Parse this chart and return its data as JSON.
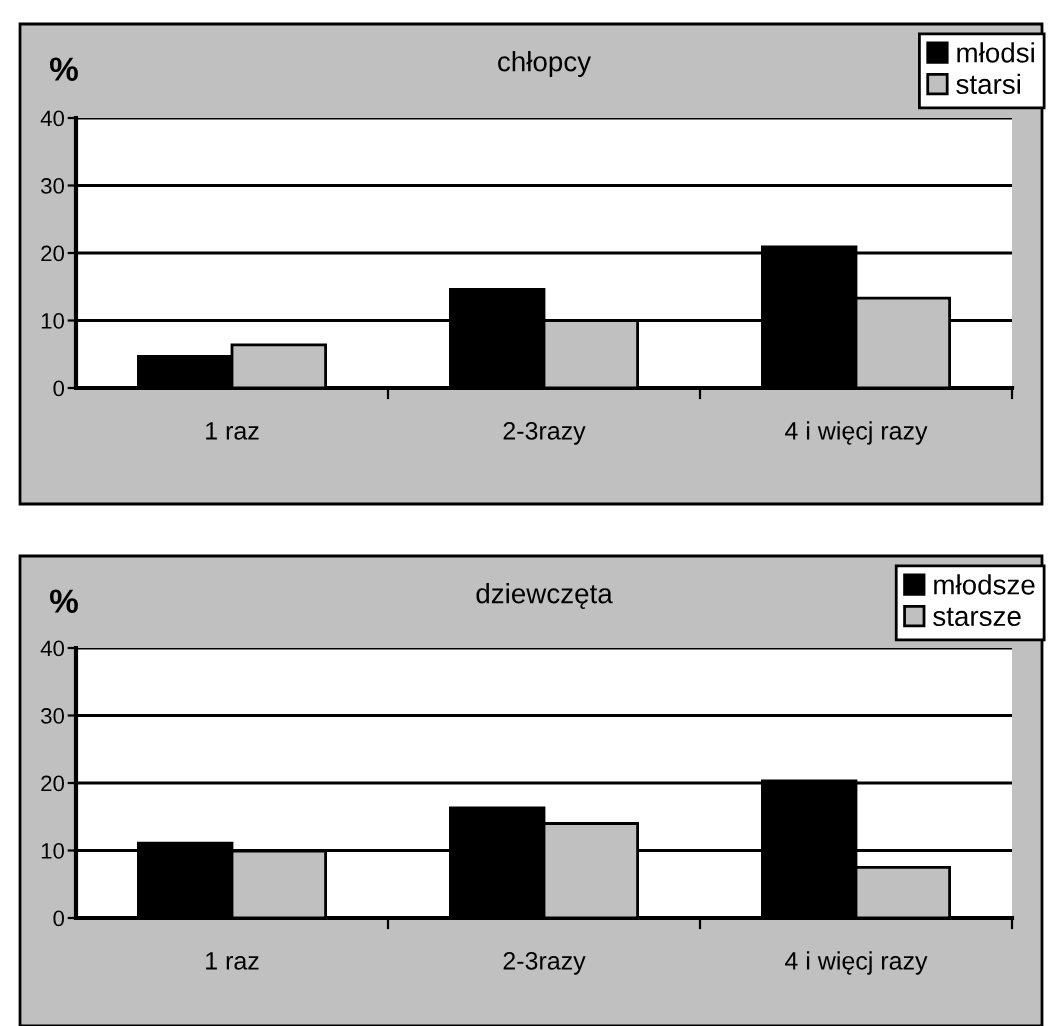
{
  "chart_data": [
    {
      "type": "bar",
      "title": "chłopcy",
      "ylabel": "%",
      "categories": [
        "1 raz",
        "2-3razy",
        "4 i więcj razy"
      ],
      "series": [
        {
          "name": "młodsi",
          "color": "#000000",
          "values": [
            4.7,
            14.6,
            20.9
          ]
        },
        {
          "name": "starsi",
          "color": "#c0c0c0",
          "values": [
            6.4,
            10.0,
            13.3
          ]
        }
      ],
      "ylim": [
        0,
        40
      ],
      "yticks": [
        0,
        10,
        20,
        30,
        40
      ],
      "grid": "y",
      "legend": "top right"
    },
    {
      "type": "bar",
      "title": "dziewczęta",
      "ylabel": "%",
      "categories": [
        "1 raz",
        "2-3razy",
        "4 i więcj razy"
      ],
      "series": [
        {
          "name": "młodsze",
          "color": "#000000",
          "values": [
            11.1,
            16.3,
            20.3
          ]
        },
        {
          "name": "starsze",
          "color": "#c0c0c0",
          "values": [
            9.9,
            14.0,
            7.5
          ]
        }
      ],
      "ylim": [
        0,
        40
      ],
      "yticks": [
        0,
        10,
        20,
        30,
        40
      ],
      "grid": "y",
      "legend": "top right"
    }
  ]
}
